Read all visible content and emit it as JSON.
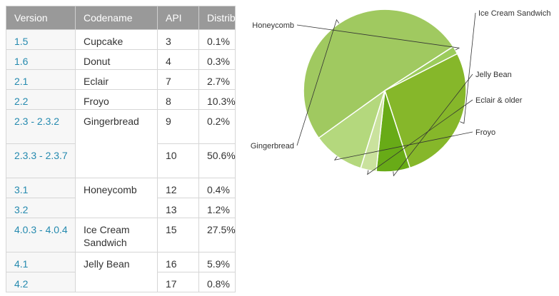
{
  "table": {
    "headers": {
      "version": "Version",
      "codename": "Codename",
      "api": "API",
      "distribution": "Distribution"
    },
    "rows": [
      {
        "version": "1.5",
        "codename": "Cupcake",
        "api": "3",
        "distribution": "0.1%"
      },
      {
        "version": "1.6",
        "codename": "Donut",
        "api": "4",
        "distribution": "0.3%"
      },
      {
        "version": "2.1",
        "codename": "Eclair",
        "api": "7",
        "distribution": "2.7%"
      },
      {
        "version": "2.2",
        "codename": "Froyo",
        "api": "8",
        "distribution": "10.3%"
      },
      {
        "version": "2.3 - 2.3.2",
        "codename": "Gingerbread",
        "api": "9",
        "distribution": "0.2%"
      },
      {
        "version": "2.3.3 - 2.3.7",
        "codename": "",
        "api": "10",
        "distribution": "50.6%"
      },
      {
        "version": "3.1",
        "codename": "Honeycomb",
        "api": "12",
        "distribution": "0.4%"
      },
      {
        "version": "3.2",
        "codename": "",
        "api": "13",
        "distribution": "1.2%"
      },
      {
        "version": "4.0.3 - 4.0.4",
        "codename": "Ice Cream Sandwich",
        "api": "15",
        "distribution": "27.5%"
      },
      {
        "version": "4.1",
        "codename": "Jelly Bean",
        "api": "16",
        "distribution": "5.9%"
      },
      {
        "version": "4.2",
        "codename": "",
        "api": "17",
        "distribution": "0.8%"
      }
    ]
  },
  "chart_data": {
    "type": "pie",
    "slices": [
      {
        "label": "Ice Cream Sandwich",
        "value": 27.5,
        "color": "#86b72a"
      },
      {
        "label": "Jelly Bean",
        "value": 6.7,
        "color": "#68ab17"
      },
      {
        "label": "Eclair & older",
        "value": 3.1,
        "color": "#cae29d"
      },
      {
        "label": "Froyo",
        "value": 10.3,
        "color": "#b4d87d"
      },
      {
        "label": "Gingerbread",
        "value": 50.8,
        "color": "#a0c960"
      },
      {
        "label": "Honeycomb",
        "value": 1.6,
        "color": "#9ccc5c"
      }
    ]
  }
}
